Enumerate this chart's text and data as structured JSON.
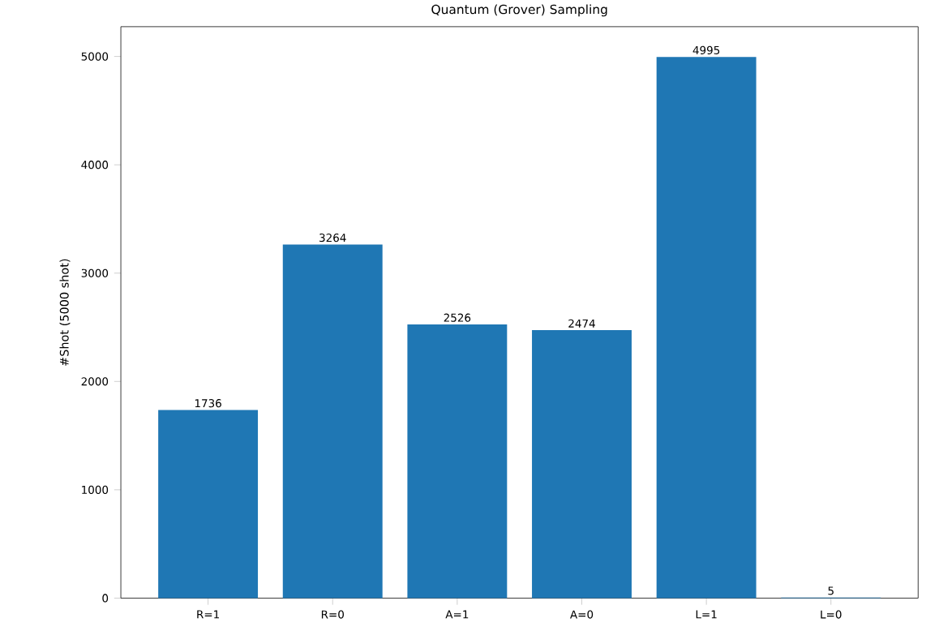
{
  "chart_data": {
    "type": "bar",
    "title": "Quantum (Grover) Sampling",
    "ylabel": "#Shot (5000 shot)",
    "categories": [
      "R=1",
      "R=0",
      "A=1",
      "A=0",
      "L=1",
      "L=0"
    ],
    "values": [
      1736,
      3264,
      2526,
      2474,
      4995,
      5
    ],
    "color": "#1f77b4",
    "ylim": [
      0,
      5275
    ],
    "yticks": [
      0,
      1000,
      2000,
      3000,
      4000,
      5000
    ],
    "data_labels": true
  }
}
